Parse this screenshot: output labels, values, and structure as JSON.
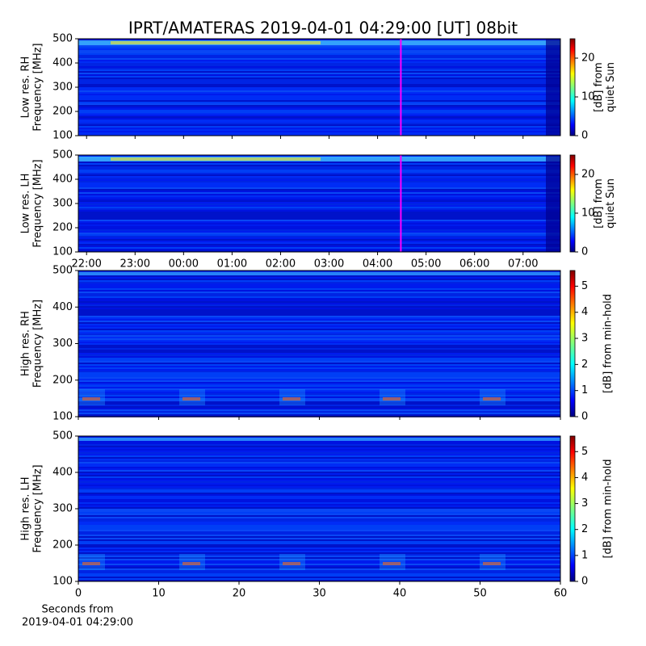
{
  "title": "IPRT/AMATERAS 2019-04-01 04:29:00 [UT]   08bit",
  "chart_data": [
    {
      "type": "heatmap",
      "ylabel": [
        "Low res. RH",
        "Frequency [MHz]"
      ],
      "ylim": [
        100,
        500
      ],
      "yticks": [
        100,
        200,
        300,
        400,
        500
      ],
      "xlim": [
        21.83,
        31.77
      ],
      "xticks": [
        22,
        23,
        24,
        25,
        26,
        27,
        28,
        29,
        30,
        31
      ],
      "marker": 28.48,
      "marker_color": "#ff00ff",
      "clim": [
        0,
        25
      ],
      "cticks": [
        0,
        10,
        20
      ],
      "clabel": [
        "[dB] from",
        "quiet Sun"
      ]
    },
    {
      "type": "heatmap",
      "ylabel": [
        "Low res. LH",
        "Frequency [MHz]"
      ],
      "ylim": [
        100,
        500
      ],
      "yticks": [
        100,
        200,
        300,
        400,
        500
      ],
      "xlim": [
        21.83,
        31.77
      ],
      "xticks": [
        {
          "value": 22,
          "label": "22:00"
        },
        {
          "value": 23,
          "label": "23:00"
        },
        {
          "value": 24,
          "label": "00:00"
        },
        {
          "value": 25,
          "label": "01:00"
        },
        {
          "value": 26,
          "label": "02:00"
        },
        {
          "value": 27,
          "label": "03:00"
        },
        {
          "value": 28,
          "label": "04:00"
        },
        {
          "value": 29,
          "label": "05:00"
        },
        {
          "value": 30,
          "label": "06:00"
        },
        {
          "value": 31,
          "label": "07:00"
        }
      ],
      "marker": 28.48,
      "marker_color": "#ff00ff",
      "clim": [
        0,
        25
      ],
      "cticks": [
        0,
        10,
        20
      ],
      "clabel": [
        "[dB] from",
        "quiet Sun"
      ]
    },
    {
      "type": "heatmap",
      "ylabel": [
        "High res. RH",
        "Frequency [MHz]"
      ],
      "ylim": [
        100,
        500
      ],
      "yticks": [
        100,
        200,
        300,
        400,
        500
      ],
      "xlim": [
        0,
        60
      ],
      "xticks": [
        0,
        10,
        20,
        30,
        40,
        50,
        60
      ],
      "clim": [
        0,
        5.6
      ],
      "cticks": [
        0,
        1,
        2,
        3,
        4,
        5
      ],
      "clabel": [
        "[dB] from min-hold"
      ]
    },
    {
      "type": "heatmap",
      "ylabel": [
        "High res. LH",
        "Frequency [MHz]"
      ],
      "ylim": [
        100,
        500
      ],
      "yticks": [
        100,
        200,
        300,
        400,
        500
      ],
      "xlim": [
        0,
        60
      ],
      "xticks": [
        0,
        10,
        20,
        30,
        40,
        50,
        60
      ],
      "xlabel": [
        "Seconds from",
        "2019-04-01 04:29:00"
      ],
      "clim": [
        0,
        5.6
      ],
      "cticks": [
        0,
        1,
        2,
        3,
        4,
        5
      ],
      "clabel": [
        "[dB] from min-hold"
      ]
    }
  ]
}
